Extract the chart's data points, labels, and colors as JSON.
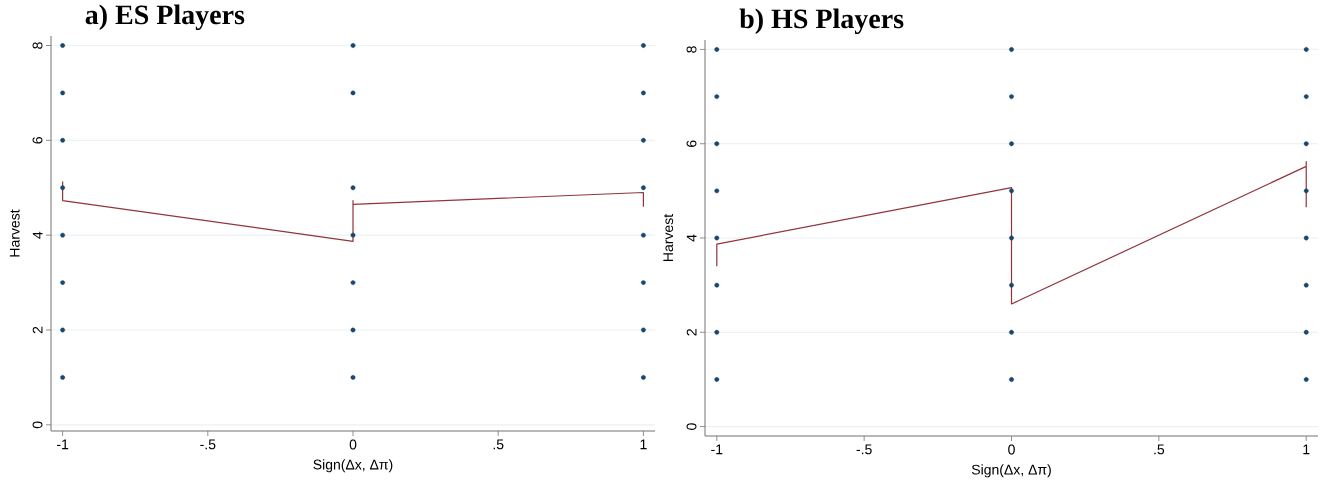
{
  "chart_data": [
    {
      "type": "scatter",
      "title": "a) ES Players",
      "xlabel": "Sign(Δx, Δπ)",
      "ylabel": "Harvest",
      "xlim": [
        -1.04,
        1.04
      ],
      "ylim": [
        -0.13,
        8.2
      ],
      "xticks": [
        {
          "value": -1,
          "label": "-1"
        },
        {
          "value": -0.5,
          "label": "-.5"
        },
        {
          "value": 0,
          "label": "0"
        },
        {
          "value": 0.5,
          "label": ".5"
        },
        {
          "value": 1,
          "label": "1"
        }
      ],
      "yticks": [
        0,
        2,
        4,
        6,
        8
      ],
      "grid": "y",
      "marker": "circle",
      "series": [
        {
          "color": "#1a476f",
          "x": [
            -1,
            -1,
            -1,
            -1,
            -1,
            -1,
            -1,
            -1,
            0,
            0,
            0,
            0,
            0,
            0,
            0,
            1,
            1,
            1,
            1,
            1,
            1,
            1,
            1
          ],
          "values": [
            1,
            2,
            3,
            4,
            5,
            6,
            7,
            8,
            1,
            2,
            3,
            4,
            5,
            7,
            8,
            1,
            2,
            3,
            4,
            5,
            6,
            7,
            8
          ]
        },
        {
          "type": "line",
          "color": "#90353b",
          "marker": "none",
          "x": [
            -1,
            -1,
            0,
            0,
            0,
            1,
            1
          ],
          "values": [
            5.13,
            4.73,
            3.87,
            4.73,
            4.65,
            4.9,
            4.6
          ]
        }
      ]
    },
    {
      "type": "scatter",
      "title": "b) HS Players",
      "xlabel": "Sign(Δx, Δπ)",
      "ylabel": "Harvest",
      "xlim": [
        -1.04,
        1.04
      ],
      "ylim": [
        -0.2,
        8.2
      ],
      "xticks": [
        {
          "value": -1,
          "label": "-1"
        },
        {
          "value": -0.5,
          "label": "-.5"
        },
        {
          "value": 0,
          "label": "0"
        },
        {
          "value": 0.5,
          "label": ".5"
        },
        {
          "value": 1,
          "label": "1"
        }
      ],
      "yticks": [
        0,
        2,
        4,
        6,
        8
      ],
      "grid": "y",
      "marker": "circle",
      "series": [
        {
          "color": "#1a476f",
          "x": [
            -1,
            -1,
            -1,
            -1,
            -1,
            -1,
            -1,
            -1,
            0,
            0,
            0,
            0,
            0,
            0,
            0,
            0,
            1,
            1,
            1,
            1,
            1,
            1,
            1,
            1
          ],
          "values": [
            1,
            2,
            3,
            4,
            5,
            6,
            7,
            8,
            1,
            2,
            3,
            4,
            5,
            6,
            7,
            8,
            1,
            2,
            3,
            4,
            5,
            6,
            7,
            8
          ]
        },
        {
          "type": "line",
          "color": "#90353b",
          "marker": "none",
          "x": [
            -1,
            -1,
            0,
            0,
            1,
            1,
            1
          ],
          "values": [
            3.4,
            3.87,
            5.07,
            2.6,
            5.52,
            5.62,
            4.65
          ]
        }
      ]
    }
  ]
}
